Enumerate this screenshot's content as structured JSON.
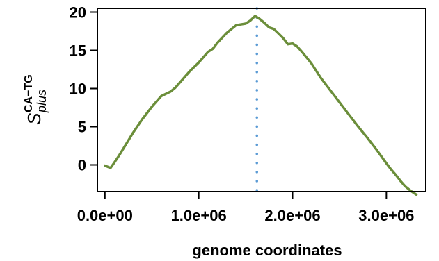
{
  "chart_data": {
    "type": "line",
    "title": "",
    "xlabel": "genome coordinates",
    "ylabel": {
      "main": "S",
      "superscript": "CA−TG",
      "subscript": "plus"
    },
    "xlim": [
      -80000,
      3420000
    ],
    "ylim": [
      -3.5,
      20.5
    ],
    "x_ticks": [
      0,
      1000000,
      2000000,
      3000000
    ],
    "x_tick_labels": [
      "0.0e+00",
      "1.0e+06",
      "2.0e+06",
      "3.0e+06"
    ],
    "y_ticks": [
      0,
      5,
      10,
      15,
      20
    ],
    "y_tick_labels": [
      "0",
      "5",
      "10",
      "15",
      "20"
    ],
    "grid": false,
    "series": [
      {
        "color": "#6b8e3a",
        "x": [
          0,
          60000,
          100000,
          150000,
          200000,
          300000,
          400000,
          500000,
          600000,
          650000,
          700000,
          750000,
          800000,
          900000,
          1000000,
          1100000,
          1150000,
          1200000,
          1300000,
          1400000,
          1500000,
          1550000,
          1600000,
          1650000,
          1700000,
          1750000,
          1800000,
          1850000,
          1900000,
          1950000,
          2000000,
          2050000,
          2100000,
          2200000,
          2300000,
          2400000,
          2500000,
          2600000,
          2700000,
          2800000,
          2900000,
          3000000,
          3050000,
          3100000,
          3150000,
          3200000,
          3260000,
          3320000
        ],
        "y": [
          -0.1,
          -0.4,
          0.3,
          1.2,
          2.2,
          4.2,
          6.0,
          7.6,
          9.0,
          9.3,
          9.6,
          10.1,
          10.8,
          12.2,
          13.4,
          14.8,
          15.2,
          16.0,
          17.3,
          18.3,
          18.5,
          18.9,
          19.5,
          19.1,
          18.6,
          18.0,
          17.8,
          17.2,
          16.6,
          15.8,
          15.9,
          15.5,
          14.8,
          13.3,
          11.4,
          9.8,
          8.2,
          6.6,
          5.0,
          3.5,
          1.9,
          0.2,
          -0.6,
          -1.3,
          -2.1,
          -2.8,
          -3.4,
          -3.9
        ]
      }
    ],
    "annotations": [
      {
        "type": "vertical-line",
        "x": 1620000,
        "style": "dotted",
        "color": "#5b9bd5"
      }
    ]
  }
}
